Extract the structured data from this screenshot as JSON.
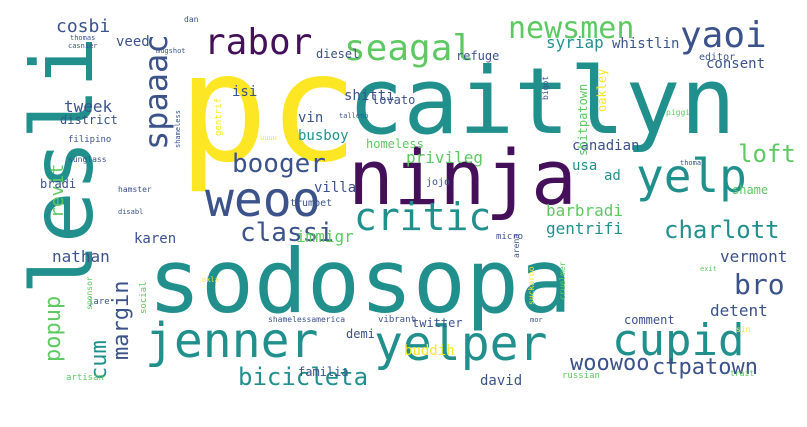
{
  "wordcloud": {
    "palette": "viridis",
    "colors": {
      "dark_purple": "#44105a",
      "indigo": "#3b528b",
      "teal": "#21908d",
      "green": "#5ec962",
      "yellow": "#fde725"
    },
    "words": [
      {
        "text": "pc",
        "color": "#fde725"
      },
      {
        "text": "caitlyn",
        "color": "#21908d"
      },
      {
        "text": "lesli",
        "color": "#21908d"
      },
      {
        "text": "ninja",
        "color": "#44105a"
      },
      {
        "text": "sodosopa",
        "color": "#21908d"
      },
      {
        "text": "seagal",
        "color": "#5ec962"
      },
      {
        "text": "newsmen",
        "color": "#5ec962"
      },
      {
        "text": "yaoi",
        "color": "#3b528b"
      },
      {
        "text": "rabor",
        "color": "#44105a"
      },
      {
        "text": "spaaac",
        "color": "#3b528b"
      },
      {
        "text": "weoo",
        "color": "#3b528b"
      },
      {
        "text": "yelp",
        "color": "#21908d"
      },
      {
        "text": "critic",
        "color": "#21908d"
      },
      {
        "text": "booger",
        "color": "#3b528b"
      },
      {
        "text": "loft",
        "color": "#5ec962"
      },
      {
        "text": "classi",
        "color": "#3b528b"
      },
      {
        "text": "charlott",
        "color": "#21908d"
      },
      {
        "text": "bro",
        "color": "#3b528b"
      },
      {
        "text": "jenner",
        "color": "#21908d"
      },
      {
        "text": "yelper",
        "color": "#21908d"
      },
      {
        "text": "cupid",
        "color": "#21908d"
      },
      {
        "text": "bicicleta",
        "color": "#21908d"
      },
      {
        "text": "woowoo",
        "color": "#3b528b"
      },
      {
        "text": "ctpatown",
        "color": "#3b528b"
      },
      {
        "text": "popup",
        "color": "#5ec962"
      },
      {
        "text": "cum",
        "color": "#21908d"
      },
      {
        "text": "margin",
        "color": "#3b528b"
      },
      {
        "text": "revit",
        "color": "#5ec962"
      },
      {
        "text": "nathan",
        "color": "#3b528b"
      },
      {
        "text": "karen",
        "color": "#3b528b"
      },
      {
        "text": "immigr",
        "color": "#5ec962"
      },
      {
        "text": "gentrifi",
        "color": "#21908d"
      },
      {
        "text": "barbradi",
        "color": "#5ec962"
      },
      {
        "text": "vermont",
        "color": "#3b528b"
      },
      {
        "text": "detent",
        "color": "#3b528b"
      },
      {
        "text": "cosbi",
        "color": "#3b528b"
      },
      {
        "text": "veed",
        "color": "#3b528b"
      },
      {
        "text": "tweek",
        "color": "#3b528b"
      },
      {
        "text": "isi",
        "color": "#3b528b"
      },
      {
        "text": "shitti",
        "color": "#3b528b"
      },
      {
        "text": "vin",
        "color": "#3b528b"
      },
      {
        "text": "busboy",
        "color": "#21908d"
      },
      {
        "text": "diesel",
        "color": "#3b528b"
      },
      {
        "text": "lovato",
        "color": "#3b528b"
      },
      {
        "text": "syriap",
        "color": "#21908d"
      },
      {
        "text": "whistlin",
        "color": "#3b528b"
      },
      {
        "text": "consent",
        "color": "#3b528b"
      },
      {
        "text": "privileg",
        "color": "#5ec962"
      },
      {
        "text": "canadian",
        "color": "#3b528b"
      },
      {
        "text": "usa",
        "color": "#21908d"
      },
      {
        "text": "ad",
        "color": "#21908d"
      },
      {
        "text": "shame",
        "color": "#5ec962"
      },
      {
        "text": "homeless",
        "color": "#5ec962"
      },
      {
        "text": "villa",
        "color": "#3b528b"
      },
      {
        "text": "buddih",
        "color": "#fde725"
      },
      {
        "text": "david",
        "color": "#3b528b"
      },
      {
        "text": "demi",
        "color": "#3b528b"
      },
      {
        "text": "twitter",
        "color": "#3b528b"
      },
      {
        "text": "comment",
        "color": "#3b528b"
      },
      {
        "text": "familia",
        "color": "#3b528b"
      },
      {
        "text": "refuge",
        "color": "#3b528b"
      },
      {
        "text": "district",
        "color": "#3b528b"
      },
      {
        "text": "editor",
        "color": "#3b528b"
      },
      {
        "text": "oakley",
        "color": "#fde725"
      },
      {
        "text": "shitpatown",
        "color": "#5ec962"
      },
      {
        "text": "bradi",
        "color": "#3b528b"
      },
      {
        "text": "trumpet",
        "color": "#3b528b"
      },
      {
        "text": "jojo",
        "color": "#3b528b"
      },
      {
        "text": "micro",
        "color": "#3b528b"
      },
      {
        "text": "social",
        "color": "#5ec962"
      },
      {
        "text": "jare",
        "color": "#3b528b"
      },
      {
        "text": "vibrant",
        "color": "#3b528b"
      },
      {
        "text": "shamelessamerica",
        "color": "#3b528b"
      },
      {
        "text": "russian",
        "color": "#5ec962"
      },
      {
        "text": "artisan",
        "color": "#5ec962"
      },
      {
        "text": "dan",
        "color": "#3b528b"
      },
      {
        "text": "casnier",
        "color": "#3b528b"
      },
      {
        "text": "thomas",
        "color": "#3b528b"
      },
      {
        "text": "mugshot",
        "color": "#3b528b"
      },
      {
        "text": "filipino",
        "color": "#3b528b"
      },
      {
        "text": "sunglass",
        "color": "#3b528b"
      },
      {
        "text": "hamster",
        "color": "#3b528b"
      },
      {
        "text": "disabl",
        "color": "#3b528b"
      },
      {
        "text": "bigot",
        "color": "#3b528b"
      },
      {
        "text": "piggi",
        "color": "#5ec962"
      },
      {
        "text": "thoma",
        "color": "#3b528b"
      },
      {
        "text": "sponsor",
        "color": "#5ec962"
      },
      {
        "text": "cruelmer",
        "color": "#5ec962"
      },
      {
        "text": "suckaroo",
        "color": "#fde725"
      },
      {
        "text": "arena",
        "color": "#3b528b"
      },
      {
        "text": "exit",
        "color": "#5ec962"
      },
      {
        "text": "sin",
        "color": "#fde725"
      },
      {
        "text": "trait",
        "color": "#5ec962"
      },
      {
        "text": "gentrif",
        "color": "#fde725"
      },
      {
        "text": "shameless",
        "color": "#3b528b"
      },
      {
        "text": "talleno",
        "color": "#3b528b"
      },
      {
        "text": "uuuu",
        "color": "#fde725"
      },
      {
        "text": "okla",
        "color": "#fde725"
      },
      {
        "text": "mor",
        "color": "#3b528b"
      }
    ]
  }
}
